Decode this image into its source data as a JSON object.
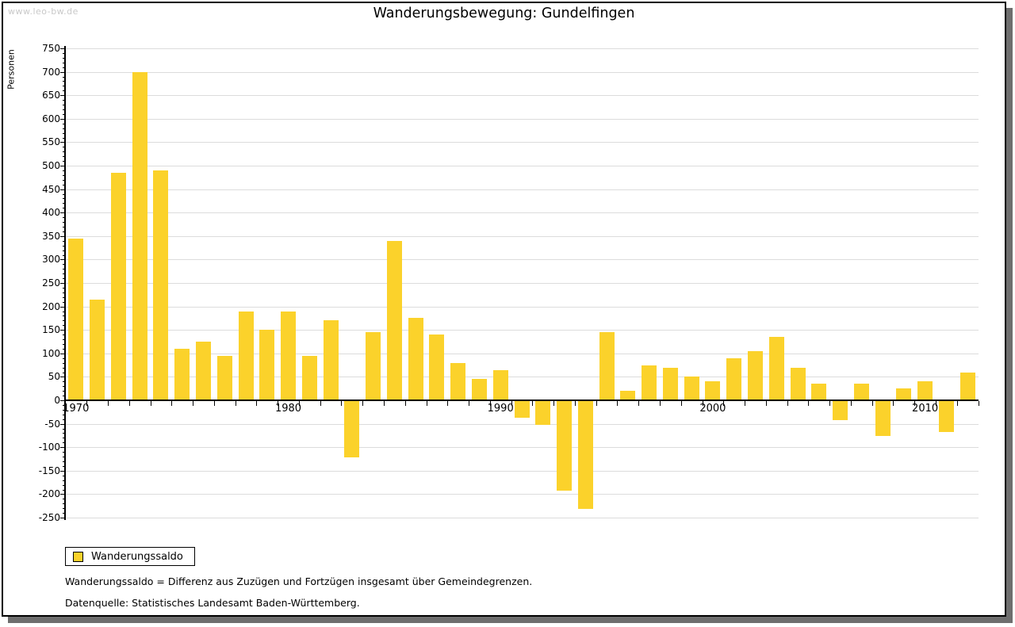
{
  "watermark": "www.leo-bw.de",
  "title": "Wanderungsbewegung: Gundelfingen",
  "legend": {
    "label": "Wanderungssaldo"
  },
  "footnotes": {
    "line1": "Wanderungssaldo = Differenz aus Zuzügen und Fortzügen insgesamt über Gemeindegrenzen.",
    "line2": "Datenquelle: Statistisches Landesamt Baden-Württemberg."
  },
  "chart_data": {
    "type": "bar",
    "title": "Wanderungsbewegung: Gundelfingen",
    "xlabel": "",
    "ylabel": "Personen",
    "categories": [
      1970,
      1971,
      1972,
      1973,
      1974,
      1975,
      1976,
      1977,
      1978,
      1979,
      1980,
      1981,
      1982,
      1983,
      1984,
      1985,
      1986,
      1987,
      1988,
      1989,
      1990,
      1991,
      1992,
      1993,
      1994,
      1995,
      1996,
      1997,
      1998,
      1999,
      2000,
      2001,
      2002,
      2003,
      2004,
      2005,
      2006,
      2007,
      2008,
      2009,
      2010,
      2011,
      2012
    ],
    "series": [
      {
        "name": "Wanderungssaldo",
        "values": [
          345,
          215,
          485,
          700,
          490,
          110,
          125,
          95,
          190,
          150,
          190,
          95,
          170,
          -120,
          145,
          340,
          175,
          140,
          80,
          45,
          65,
          -35,
          -50,
          -190,
          -230,
          145,
          20,
          75,
          70,
          50,
          40,
          90,
          105,
          135,
          70,
          35,
          -40,
          35,
          -75,
          25,
          40,
          -65,
          60
        ]
      }
    ],
    "ylim": [
      -250,
      750
    ],
    "ytick_step": 50,
    "ytick_minor_step": 10,
    "xticks_labeled": [
      1970,
      1980,
      1990,
      2000,
      2010
    ],
    "grid": true,
    "legend_position": "bottom-left"
  },
  "colors": {
    "bar": "#fbd22b",
    "grid": "#dcdcdc",
    "axis": "#000000",
    "watermark": "#c9c9c9",
    "frame_shadow": "#6e6e6e"
  }
}
